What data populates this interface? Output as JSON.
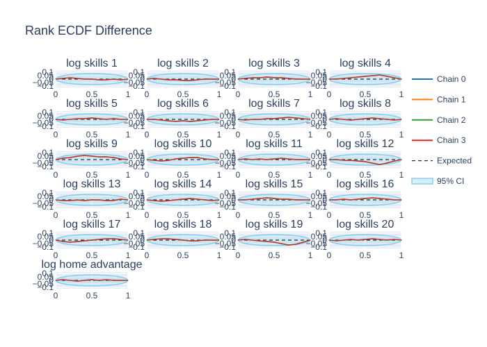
{
  "chart_data": {
    "type": "line",
    "title": "Rank ECDF Difference",
    "x_ticks": [
      "0",
      "0.5",
      "1"
    ],
    "y_ticks": [
      "0.1",
      "0.05",
      "0",
      "−0.05",
      "−0.1"
    ],
    "xlim": [
      0,
      1
    ],
    "ylim": [
      -0.12,
      0.12
    ],
    "grid": true,
    "legend_position": "right",
    "legend": [
      {
        "label": "Chain 0",
        "color": "#1f77b4",
        "style": "solid"
      },
      {
        "label": "Chain 1",
        "color": "#ff7f0e",
        "style": "solid"
      },
      {
        "label": "Chain 2",
        "color": "#2ca02c",
        "style": "solid"
      },
      {
        "label": "Chain 3",
        "color": "#d62728",
        "style": "solid"
      },
      {
        "label": "Expected",
        "color": "#000000",
        "style": "dashed"
      },
      {
        "label": "95% CI",
        "color": "#87ceeb",
        "style": "band"
      }
    ],
    "ci_band_half_width_peak": 0.08,
    "x": [
      0,
      0.1,
      0.2,
      0.3,
      0.4,
      0.5,
      0.6,
      0.7,
      0.8,
      0.9,
      1
    ],
    "subplots": [
      {
        "name": "log skills 1",
        "values": [
          0,
          0.01,
          0.02,
          0.01,
          0.0,
          0.0,
          -0.01,
          -0.01,
          0.0,
          -0.01,
          0
        ]
      },
      {
        "name": "log skills 2",
        "values": [
          0,
          0.01,
          0.0,
          -0.01,
          -0.01,
          -0.02,
          -0.02,
          -0.01,
          0.0,
          0.0,
          0
        ]
      },
      {
        "name": "log skills 3",
        "values": [
          0,
          0.01,
          0.02,
          0.02,
          0.03,
          0.02,
          0.02,
          0.01,
          0.0,
          0.0,
          0
        ]
      },
      {
        "name": "log skills 4",
        "values": [
          0,
          0.0,
          0.01,
          0.02,
          0.03,
          0.04,
          0.05,
          0.06,
          0.04,
          0.02,
          0
        ]
      },
      {
        "name": "log skills 5",
        "values": [
          0,
          -0.01,
          0.0,
          0.01,
          0.01,
          0.02,
          0.01,
          0.0,
          0.01,
          0.0,
          0
        ]
      },
      {
        "name": "log skills 6",
        "values": [
          0,
          0.0,
          -0.01,
          -0.02,
          -0.03,
          -0.02,
          -0.03,
          -0.02,
          -0.01,
          0.0,
          0
        ]
      },
      {
        "name": "log skills 7",
        "values": [
          0,
          -0.01,
          0.0,
          0.0,
          0.01,
          0.01,
          0.02,
          0.03,
          0.02,
          0.01,
          0
        ]
      },
      {
        "name": "log skills 8",
        "values": [
          0,
          0.01,
          0.0,
          -0.01,
          0.0,
          0.01,
          0.02,
          0.01,
          0.0,
          -0.01,
          0
        ]
      },
      {
        "name": "log skills 9",
        "values": [
          0,
          0.02,
          0.03,
          0.05,
          0.06,
          0.05,
          0.04,
          0.04,
          0.03,
          0.01,
          0
        ]
      },
      {
        "name": "log skills 10",
        "values": [
          0,
          -0.01,
          -0.02,
          -0.01,
          0.01,
          0.02,
          0.03,
          0.03,
          0.01,
          0.0,
          0
        ]
      },
      {
        "name": "log skills 11",
        "values": [
          0,
          0.01,
          0.0,
          0.01,
          0.0,
          0.01,
          0.02,
          0.01,
          0.0,
          0.0,
          0
        ]
      },
      {
        "name": "log skills 12",
        "values": [
          0,
          0.0,
          -0.01,
          -0.01,
          -0.02,
          -0.03,
          -0.05,
          -0.07,
          -0.05,
          -0.02,
          0
        ]
      },
      {
        "name": "log skills 13",
        "values": [
          0,
          -0.01,
          -0.01,
          0.0,
          -0.01,
          0.0,
          0.0,
          -0.01,
          -0.01,
          0.01,
          0
        ]
      },
      {
        "name": "log skills 14",
        "values": [
          0,
          -0.01,
          -0.02,
          -0.01,
          0.0,
          0.01,
          0.02,
          0.01,
          0.0,
          -0.01,
          0
        ]
      },
      {
        "name": "log skills 15",
        "values": [
          0,
          0.0,
          0.01,
          0.02,
          0.03,
          0.02,
          0.01,
          0.01,
          0.0,
          0.0,
          0
        ]
      },
      {
        "name": "log skills 16",
        "values": [
          0,
          0.0,
          0.01,
          0.0,
          0.01,
          0.02,
          0.03,
          0.02,
          0.01,
          0.0,
          0
        ]
      },
      {
        "name": "log skills 17",
        "values": [
          0,
          -0.02,
          -0.03,
          -0.02,
          -0.01,
          0.0,
          0.01,
          0.02,
          0.02,
          0.01,
          0
        ]
      },
      {
        "name": "log skills 18",
        "values": [
          0,
          0.01,
          0.02,
          0.02,
          0.01,
          0.0,
          -0.01,
          -0.01,
          0.0,
          0.0,
          0
        ]
      },
      {
        "name": "log skills 19",
        "values": [
          0,
          0.01,
          0.0,
          -0.01,
          -0.02,
          -0.03,
          -0.05,
          -0.07,
          -0.06,
          -0.03,
          0
        ]
      },
      {
        "name": "log skills 20",
        "values": [
          0,
          -0.01,
          0.0,
          0.01,
          0.0,
          0.01,
          0.02,
          0.01,
          0.0,
          0.01,
          0
        ]
      },
      {
        "name": "log home advantage",
        "values": [
          0,
          0.01,
          0.0,
          -0.01,
          0.0,
          0.01,
          0.0,
          0.01,
          0.0,
          0.0,
          0
        ]
      }
    ]
  }
}
